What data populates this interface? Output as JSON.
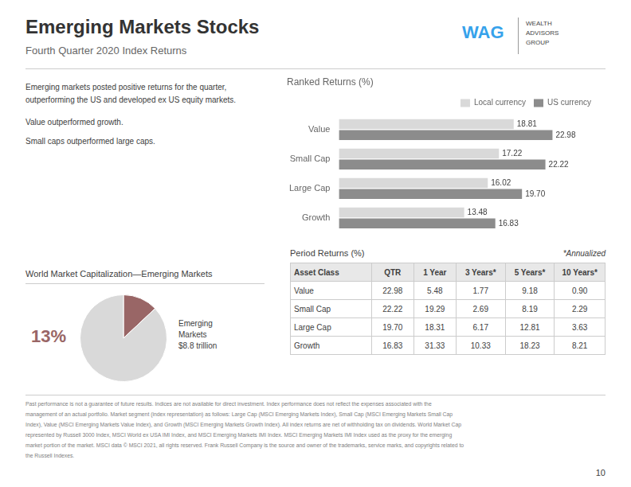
{
  "title": "Emerging Markets Stocks",
  "subtitle": "Fourth Quarter 2020 Index Returns",
  "logo": [
    "WAG",
    "WEALTH\nADVISORS\nGROUP"
  ],
  "notes": [
    "Emerging markets posted positive returns for the quarter,",
    "outperforming the US and developed ex US equity markets.",
    "Value outperformed growth.",
    "Small caps outperformed large caps."
  ],
  "chart_data": [
    {
      "type": "bar",
      "orientation": "horizontal",
      "title": "Ranked Returns (%)",
      "categories": [
        "Value",
        "Small Cap",
        "Large Cap",
        "Growth"
      ],
      "series": [
        {
          "name": "Local currency",
          "color": "#d9d9d9",
          "values": [
            18.81,
            17.22,
            16.02,
            13.48
          ],
          "value_labels": [
            "18.81",
            "17.22",
            "16.02",
            "13.48"
          ]
        },
        {
          "name": "US currency",
          "color": "#8c8c8c",
          "values": [
            22.98,
            22.22,
            19.7,
            16.83
          ],
          "value_labels": [
            "22.98",
            "22.22",
            "19.70",
            "16.83"
          ]
        }
      ],
      "xlim": [
        0,
        28
      ],
      "grid": false,
      "legend": "upper right",
      "data_labels": true,
      "tick_labels": "y"
    },
    {
      "type": "pie",
      "title": "World Market Capitalization—Emerging Markets",
      "values": [
        13,
        87
      ],
      "value_labels": [
        "13%",
        null
      ],
      "colors": [
        "#996666",
        "#d9d9d9"
      ],
      "data_labels": true,
      "annotations": [
        "Emerging\nMarkets\n$8.8 trillion"
      ]
    }
  ],
  "table": {
    "title": "Period Returns (%)",
    "note": "*Annualized",
    "headers": [
      "Asset Class",
      "QTR",
      "1 Year",
      "3 Years*",
      "5 Years*",
      "10 Years*"
    ],
    "rows": [
      [
        "Value",
        "22.98",
        "5.48",
        "1.77",
        "9.18",
        "0.90"
      ],
      [
        "Small Cap",
        "22.22",
        "19.29",
        "2.69",
        "8.19",
        "2.29"
      ],
      [
        "Large Cap",
        "19.70",
        "18.31",
        "6.17",
        "12.81",
        "3.63"
      ],
      [
        "Growth",
        "16.83",
        "31.33",
        "10.33",
        "18.23",
        "8.21"
      ]
    ]
  },
  "footer": [
    "Past performance is not a guarantee of future results. Indices are not available for direct investment. Index performance does not reflect the expenses associated with the",
    "management of an actual portfolio. Market segment (index representation) as follows: Large Cap (MSCI Emerging Markets Index), Small Cap (MSCI Emerging Markets Small Cap",
    "Index), Value (MSCI Emerging Markets Value Index), and Growth (MSCI Emerging Markets Growth Index). All index returns are net of withholding tax on dividends. World Market Cap",
    "represented by Russell 3000 Index, MSCI World ex USA IMI Index, and MSCI Emerging Markets IMI Index. MSCI Emerging Markets IMI Index used as the proxy for the emerging",
    "market portion of the market. MSCI data © MSCI 2021, all rights reserved. Frank Russell Company is the source and owner of the trademarks, service marks, and copyrights related to",
    "the Russell Indexes."
  ],
  "page_number": "10"
}
